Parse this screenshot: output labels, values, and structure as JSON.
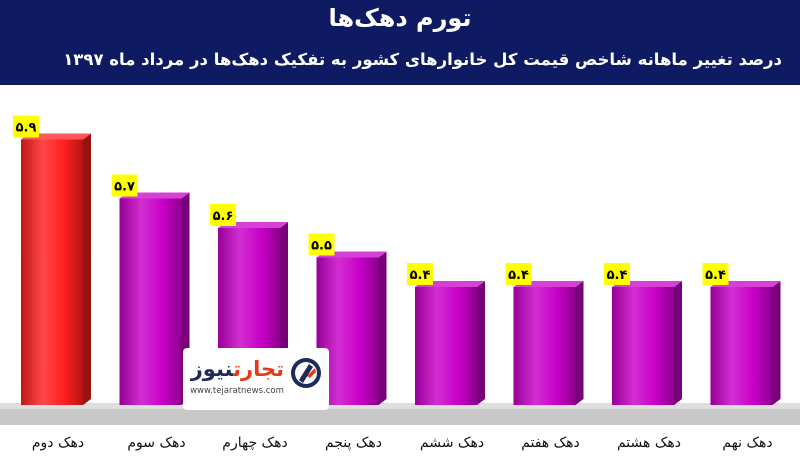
{
  "chart_data": {
    "type": "bar",
    "title": "تورم دهک‌ها",
    "subtitle": "درصد تغییر ماهانه شاخص قیمت کل خانوارهای کشور به تفکیک دهک‌ها در مرداد ماه ۱۳۹۷",
    "categories": [
      "دهک دوم",
      "دهک سوم",
      "دهک چهارم",
      "دهک پنجم",
      "دهک ششم",
      "دهک هفتم",
      "دهک هشتم",
      "دهک نهم"
    ],
    "values": [
      5.9,
      5.7,
      5.6,
      5.5,
      5.4,
      5.4,
      5.4,
      5.4
    ],
    "value_labels": [
      "۵.۹",
      "۵.۷",
      "۵.۶",
      "۵.۵",
      "۵.۴",
      "۵.۴",
      "۵.۴",
      "۵.۴"
    ],
    "highlight_index": 0,
    "colors": {
      "highlight": "#ff1e1e",
      "bar": "#c800c8",
      "label_bg": "#ffff00",
      "header_bg": "#0e1b63",
      "floor": "#c8c8c8"
    },
    "xlabel": "",
    "ylabel": "",
    "ylim": [
      5.0,
      6.0
    ],
    "grid": false,
    "legend": "none"
  },
  "watermark": {
    "brand_part1": "تجارت",
    "brand_part2": "نیوز",
    "url": "www.tejaratnews.com",
    "icon": "tejaratnews-logo-icon"
  }
}
